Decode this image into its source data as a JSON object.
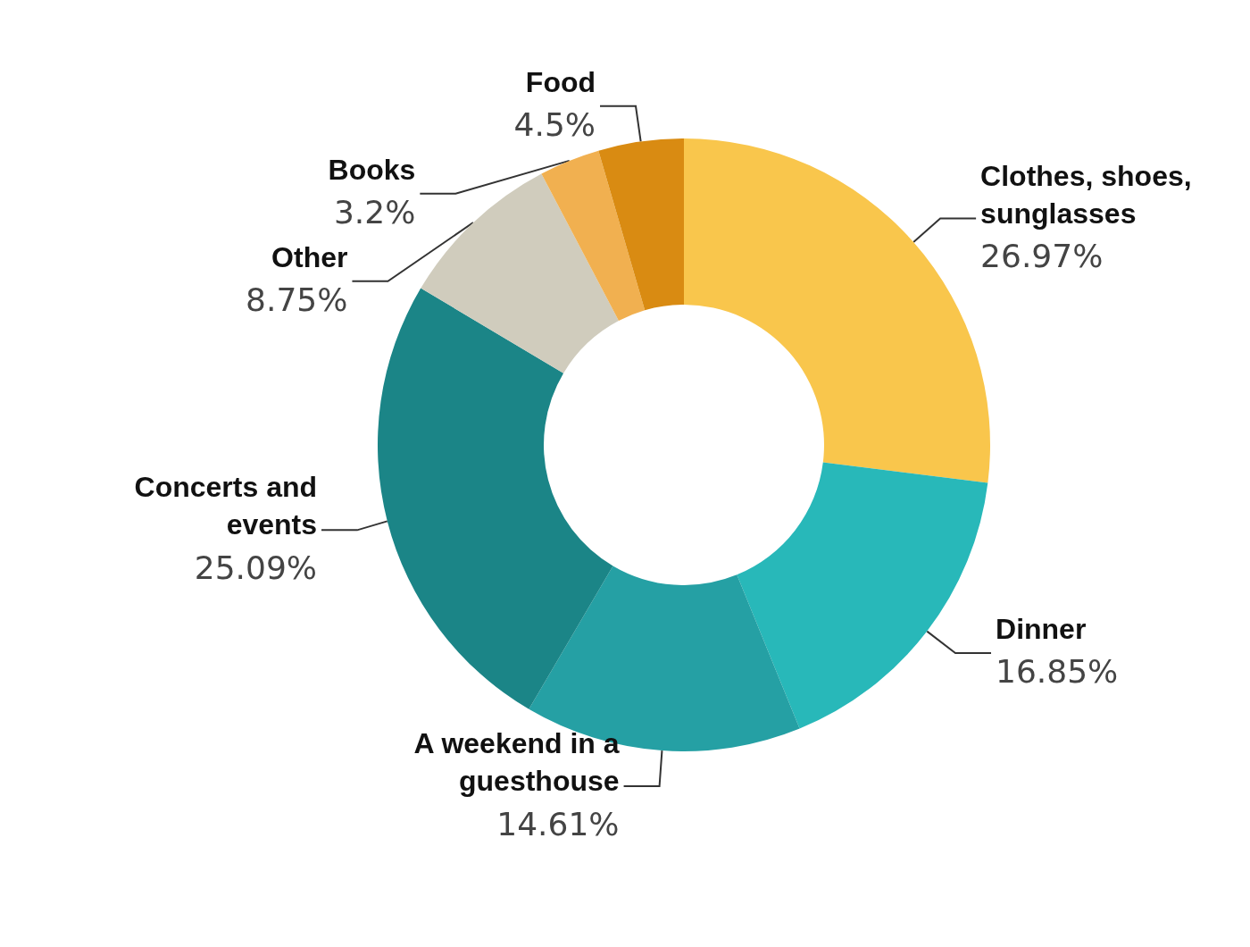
{
  "chart_data": {
    "type": "donut",
    "categories": [
      "Clothes, shoes, sunglasses",
      "Dinner",
      "A weekend in a guesthouse",
      "Concerts and events",
      "Other",
      "Books",
      "Food"
    ],
    "values": [
      26.97,
      16.85,
      14.61,
      25.09,
      8.75,
      3.2,
      4.5
    ],
    "colors": [
      "#f9c64c",
      "#28b8b9",
      "#25a0a4",
      "#1b8587",
      "#d0ccbd",
      "#f1b050",
      "#d98b12"
    ],
    "value_labels": [
      "26.97%",
      "16.85%",
      "14.61%",
      "25.09%",
      "8.75%",
      "3.2%",
      "4.5%"
    ],
    "legend": false
  }
}
